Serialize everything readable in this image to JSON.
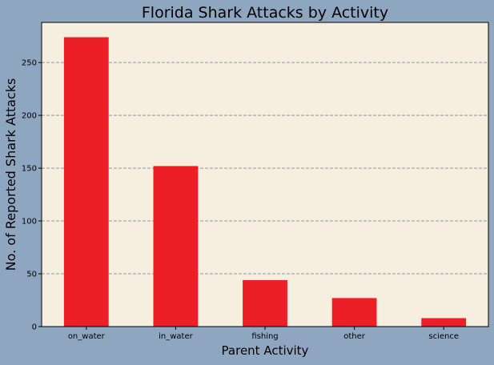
{
  "colors": {
    "figure_background": "#8fa6c1",
    "plot_background": "#f6efdf",
    "bar": "#ec1f26",
    "grid": "#8a98ad",
    "axis": "#000000"
  },
  "chart_data": {
    "type": "bar",
    "title": "Florida Shark Attacks by Activity",
    "xlabel": "Parent Activity",
    "ylabel": "No. of Reported Shark Attacks",
    "categories": [
      "on_water",
      "in_water",
      "fishing",
      "other",
      "science"
    ],
    "values": [
      274,
      152,
      44,
      27,
      8
    ],
    "ylim": [
      0,
      288
    ],
    "yticks": [
      0,
      50,
      100,
      150,
      200,
      250
    ],
    "grid": "y-dashed",
    "legend": "none"
  }
}
